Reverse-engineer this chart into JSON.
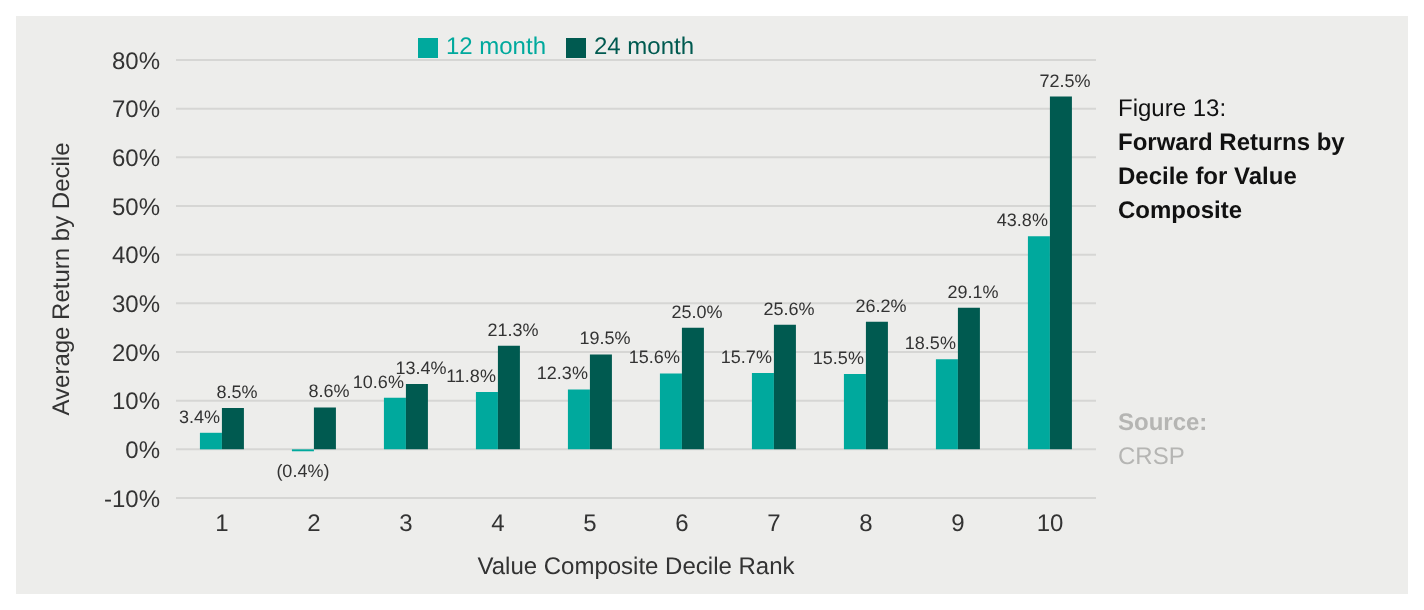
{
  "chart_data": {
    "type": "bar",
    "title": "Figure 13:",
    "subtitle": "Forward Returns by Decile for Value Composite",
    "xlabel": "Value Composite Decile Rank",
    "ylabel": "Average Return by Decile",
    "annotations": [
      "Source:",
      "CRSP"
    ],
    "categories": [
      "1",
      "2",
      "3",
      "4",
      "5",
      "6",
      "7",
      "8",
      "9",
      "10"
    ],
    "series": [
      {
        "name": "12 month",
        "color": "#00a99d",
        "values": [
          3.4,
          -0.4,
          10.6,
          11.8,
          12.3,
          15.6,
          15.7,
          15.5,
          18.5,
          43.8
        ],
        "value_labels": [
          "3.4%",
          "(0.4%)",
          "10.6%",
          "11.8%",
          "12.3%",
          "15.6%",
          "15.7%",
          "15.5%",
          "18.5%",
          "43.8%"
        ]
      },
      {
        "name": "24 month",
        "color": "#005a50",
        "values": [
          8.5,
          8.6,
          13.4,
          21.3,
          19.5,
          25.0,
          25.6,
          26.2,
          29.1,
          72.5
        ],
        "value_labels": [
          "8.5%",
          "8.6%",
          "13.4%",
          "21.3%",
          "19.5%",
          "25.0%",
          "25.6%",
          "26.2%",
          "29.1%",
          "72.5%"
        ]
      }
    ],
    "ylim": [
      -10,
      80
    ],
    "yticks": [
      {
        "value": -10,
        "label": "-10%"
      },
      {
        "value": 0,
        "label": "0%"
      },
      {
        "value": 10,
        "label": "10%"
      },
      {
        "value": 20,
        "label": "20%"
      },
      {
        "value": 30,
        "label": "30%"
      },
      {
        "value": 40,
        "label": "40%"
      },
      {
        "value": 50,
        "label": "50%"
      },
      {
        "value": 60,
        "label": "60%"
      },
      {
        "value": 70,
        "label": "70%"
      },
      {
        "value": 80,
        "label": "80%"
      }
    ],
    "grid": "y",
    "legend": "top"
  }
}
